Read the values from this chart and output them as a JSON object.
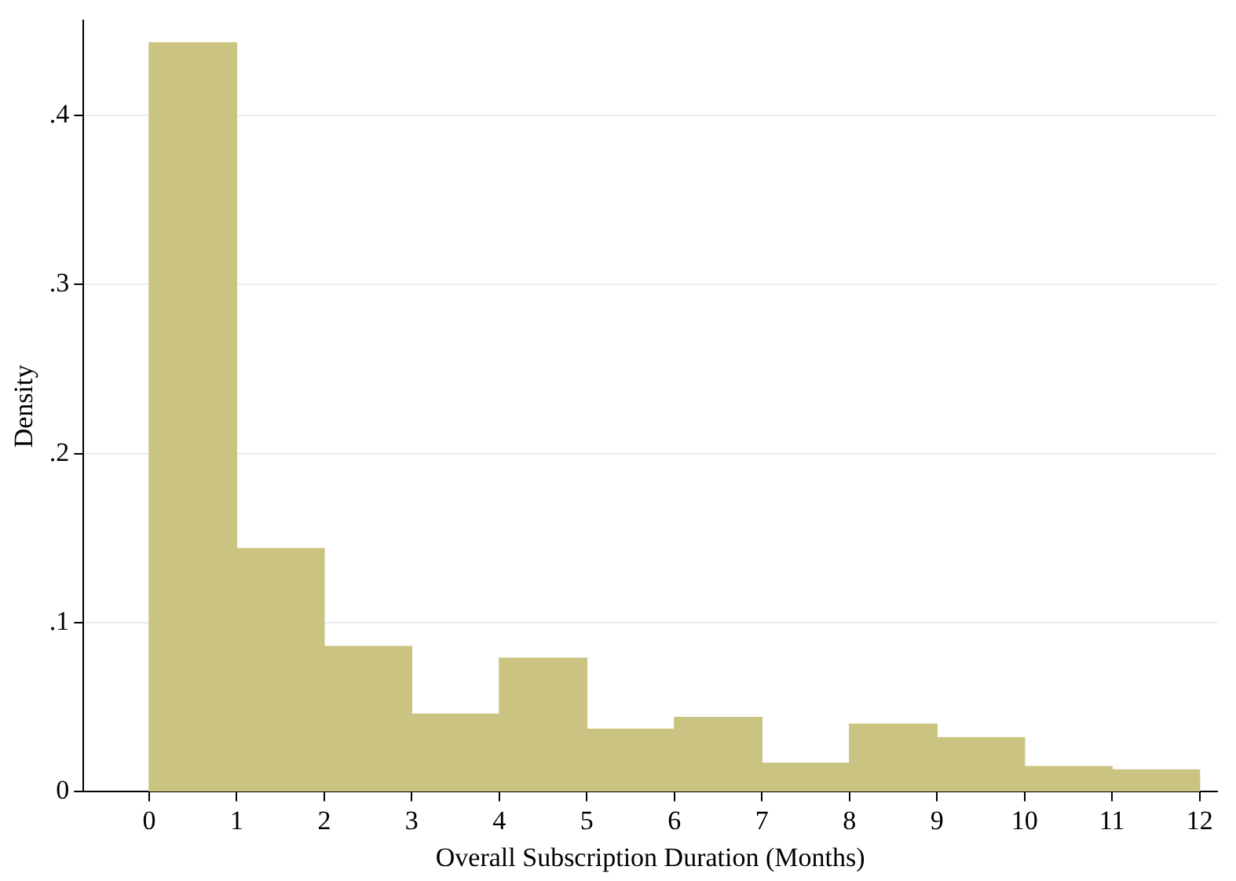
{
  "chart_data": {
    "type": "histogram",
    "xlabel": "Overall Subscription Duration (Months)",
    "ylabel": "Density",
    "bins": [
      0,
      1,
      2,
      3,
      4,
      5,
      6,
      7,
      8,
      9,
      10,
      11,
      12
    ],
    "values": [
      0.443,
      0.144,
      0.086,
      0.046,
      0.079,
      0.037,
      0.044,
      0.017,
      0.04,
      0.032,
      0.015,
      0.013
    ],
    "color": "#cbc381",
    "xlim": [
      -0.75,
      12.2
    ],
    "xticks": [
      0,
      1,
      2,
      3,
      4,
      5,
      6,
      7,
      8,
      9,
      10,
      11,
      12
    ],
    "ylim": [
      0,
      0.456
    ],
    "yticks": [
      0,
      {
        "value": 0.1,
        "label": ".1"
      },
      {
        "value": 0.2,
        "label": ".2"
      },
      {
        "value": 0.3,
        "label": ".3"
      },
      {
        "value": 0.4,
        "label": ".4"
      }
    ],
    "grid": "y",
    "legend": false
  }
}
